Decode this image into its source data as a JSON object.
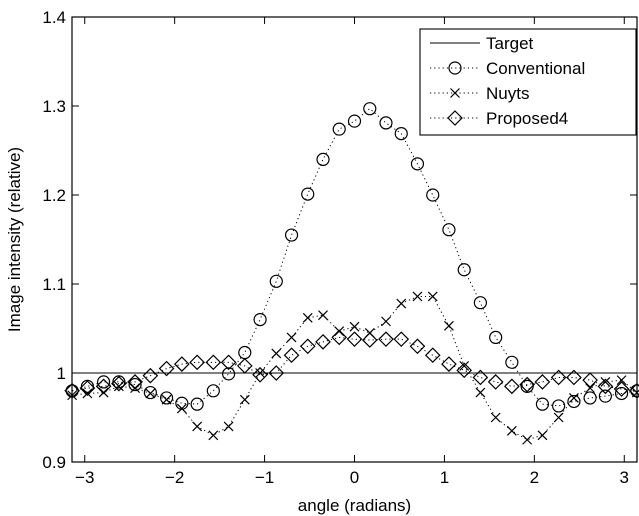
{
  "chart_data": {
    "type": "line",
    "title": "",
    "xlabel": "angle (radians)",
    "ylabel": "Image intensity (relative)",
    "xlim": [
      -3.14159,
      3.14159
    ],
    "ylim": [
      0.9,
      1.4
    ],
    "xticks": [
      -3,
      -2,
      -1,
      0,
      1,
      2,
      3
    ],
    "xtick_labels": [
      "−3",
      "−2",
      "−1",
      "0",
      "1",
      "2",
      "3"
    ],
    "yticks": [
      0.9,
      1.0,
      1.1,
      1.2,
      1.3,
      1.4
    ],
    "ytick_labels": [
      "0.9",
      "1",
      "1.1",
      "1.2",
      "1.3",
      "1.4"
    ],
    "grid": false,
    "legend_position": "top-right",
    "series": [
      {
        "name": "Target",
        "style": "solid line",
        "marker": "none",
        "x": [
          -3.14159,
          3.14159
        ],
        "y": [
          1.0,
          1.0
        ]
      },
      {
        "name": "Conventional",
        "style": "dotted",
        "marker": "circle",
        "x": [
          -3.14,
          -2.97,
          -2.79,
          -2.62,
          -2.44,
          -2.27,
          -2.09,
          -1.92,
          -1.75,
          -1.57,
          -1.4,
          -1.22,
          -1.05,
          -0.87,
          -0.7,
          -0.52,
          -0.35,
          -0.17,
          0.0,
          0.17,
          0.35,
          0.52,
          0.7,
          0.87,
          1.05,
          1.22,
          1.4,
          1.57,
          1.75,
          1.92,
          2.09,
          2.27,
          2.44,
          2.62,
          2.79,
          2.97,
          3.14
        ],
        "y": [
          0.98,
          0.985,
          0.99,
          0.99,
          0.987,
          0.978,
          0.972,
          0.966,
          0.965,
          0.98,
          0.999,
          1.023,
          1.06,
          1.103,
          1.155,
          1.201,
          1.24,
          1.274,
          1.283,
          1.297,
          1.281,
          1.269,
          1.235,
          1.2,
          1.161,
          1.116,
          1.079,
          1.04,
          1.012,
          0.985,
          0.965,
          0.963,
          0.968,
          0.972,
          0.974,
          0.977,
          0.98
        ]
      },
      {
        "name": "Nuyts",
        "style": "dotted",
        "marker": "x",
        "x": [
          -3.14,
          -2.97,
          -2.79,
          -2.62,
          -2.44,
          -2.27,
          -2.09,
          -1.92,
          -1.75,
          -1.57,
          -1.4,
          -1.22,
          -1.05,
          -0.87,
          -0.7,
          -0.52,
          -0.35,
          -0.17,
          0.0,
          0.17,
          0.35,
          0.52,
          0.7,
          0.87,
          1.05,
          1.22,
          1.4,
          1.57,
          1.75,
          1.92,
          2.09,
          2.27,
          2.44,
          2.62,
          2.79,
          2.97,
          3.14
        ],
        "y": [
          0.975,
          0.977,
          0.978,
          0.985,
          0.983,
          0.977,
          0.97,
          0.96,
          0.94,
          0.93,
          0.94,
          0.97,
          1.0,
          1.022,
          1.04,
          1.062,
          1.065,
          1.047,
          1.052,
          1.045,
          1.058,
          1.078,
          1.086,
          1.086,
          1.053,
          1.008,
          0.978,
          0.95,
          0.935,
          0.925,
          0.93,
          0.95,
          0.972,
          0.983,
          0.99,
          0.992,
          0.978
        ]
      },
      {
        "name": "Proposed4",
        "style": "dotted",
        "marker": "diamond",
        "x": [
          -3.14,
          -2.97,
          -2.79,
          -2.62,
          -2.44,
          -2.27,
          -2.09,
          -1.92,
          -1.75,
          -1.57,
          -1.4,
          -1.22,
          -1.05,
          -0.87,
          -0.7,
          -0.52,
          -0.35,
          -0.17,
          0.0,
          0.17,
          0.35,
          0.52,
          0.7,
          0.87,
          1.05,
          1.22,
          1.4,
          1.57,
          1.75,
          1.92,
          2.09,
          2.27,
          2.44,
          2.62,
          2.79,
          2.97,
          3.14
        ],
        "y": [
          0.98,
          0.983,
          0.985,
          0.988,
          0.99,
          0.997,
          1.005,
          1.01,
          1.012,
          1.012,
          1.012,
          1.008,
          0.998,
          1.0,
          1.02,
          1.03,
          1.035,
          1.04,
          1.038,
          1.037,
          1.038,
          1.038,
          1.03,
          1.02,
          1.01,
          1.003,
          0.995,
          0.99,
          0.985,
          0.987,
          0.99,
          0.995,
          0.995,
          0.992,
          0.985,
          0.982,
          0.98
        ]
      }
    ]
  }
}
